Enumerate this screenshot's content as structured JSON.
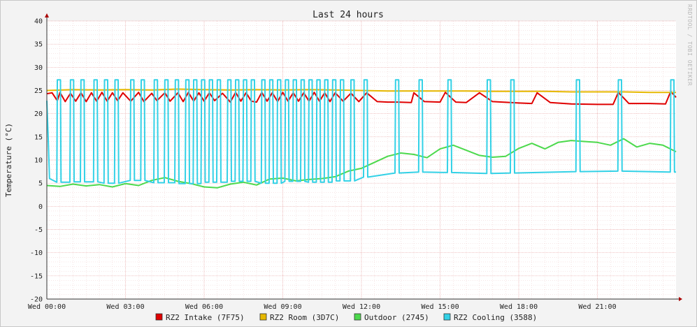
{
  "chart_data": {
    "type": "line",
    "title": "Last 24 hours",
    "ylabel": "Temperature (°C)",
    "xlabel": "",
    "watermark": "RRDTOOL / TOBI OETIKER",
    "ylim": [
      -20,
      40
    ],
    "xlim": [
      0,
      24
    ],
    "y_ticks": [
      -20,
      -15,
      -10,
      -5,
      0,
      5,
      10,
      15,
      20,
      25,
      30,
      35,
      40
    ],
    "x_ticks": [
      {
        "x": 0,
        "label": "Wed 00:00"
      },
      {
        "x": 3,
        "label": "Wed 03:00"
      },
      {
        "x": 6,
        "label": "Wed 06:00"
      },
      {
        "x": 9,
        "label": "Wed 09:00"
      },
      {
        "x": 12,
        "label": "Wed 12:00"
      },
      {
        "x": 15,
        "label": "Wed 15:00"
      },
      {
        "x": 18,
        "label": "Wed 18:00"
      },
      {
        "x": 21,
        "label": "Wed 21:00"
      }
    ],
    "grid": true,
    "legend_position": "bottom",
    "series": [
      {
        "name": "RZ2 Intake (7F75)",
        "color": "#e00000",
        "points": [
          [
            0,
            24.3
          ],
          [
            0.2,
            24.5
          ],
          [
            0.4,
            22.8
          ],
          [
            0.5,
            24.6
          ],
          [
            0.7,
            22.6
          ],
          [
            0.9,
            24.4
          ],
          [
            1.1,
            22.7
          ],
          [
            1.3,
            24.5
          ],
          [
            1.5,
            22.6
          ],
          [
            1.7,
            24.5
          ],
          [
            1.9,
            22.7
          ],
          [
            2.1,
            24.6
          ],
          [
            2.3,
            22.7
          ],
          [
            2.5,
            24.5
          ],
          [
            2.7,
            22.8
          ],
          [
            2.9,
            24.5
          ],
          [
            3.2,
            22.7
          ],
          [
            3.5,
            24.6
          ],
          [
            3.7,
            22.6
          ],
          [
            4.0,
            24.4
          ],
          [
            4.2,
            22.8
          ],
          [
            4.5,
            24.5
          ],
          [
            4.7,
            22.7
          ],
          [
            5.0,
            24.5
          ],
          [
            5.2,
            22.6
          ],
          [
            5.4,
            24.6
          ],
          [
            5.6,
            22.7
          ],
          [
            5.8,
            24.5
          ],
          [
            6.0,
            22.7
          ],
          [
            6.2,
            24.5
          ],
          [
            6.4,
            22.8
          ],
          [
            6.7,
            24.4
          ],
          [
            7.0,
            22.5
          ],
          [
            7.2,
            24.6
          ],
          [
            7.4,
            22.7
          ],
          [
            7.6,
            24.5
          ],
          [
            7.8,
            22.7
          ],
          [
            8.0,
            22.5
          ],
          [
            8.2,
            24.6
          ],
          [
            8.4,
            22.7
          ],
          [
            8.6,
            24.5
          ],
          [
            8.8,
            22.6
          ],
          [
            9.0,
            24.6
          ],
          [
            9.2,
            22.7
          ],
          [
            9.4,
            24.5
          ],
          [
            9.6,
            22.7
          ],
          [
            9.8,
            24.5
          ],
          [
            10.0,
            22.7
          ],
          [
            10.2,
            24.6
          ],
          [
            10.4,
            22.7
          ],
          [
            10.6,
            24.5
          ],
          [
            10.8,
            22.6
          ],
          [
            11.0,
            24.5
          ],
          [
            11.3,
            22.7
          ],
          [
            11.6,
            24.4
          ],
          [
            11.9,
            22.6
          ],
          [
            12.2,
            24.5
          ],
          [
            12.6,
            22.6
          ],
          [
            13.0,
            22.5
          ],
          [
            13.4,
            22.5
          ],
          [
            13.9,
            22.4
          ],
          [
            14.0,
            24.5
          ],
          [
            14.4,
            22.6
          ],
          [
            15.0,
            22.5
          ],
          [
            15.2,
            24.6
          ],
          [
            15.6,
            22.5
          ],
          [
            16.0,
            22.4
          ],
          [
            16.5,
            24.5
          ],
          [
            17.0,
            22.6
          ],
          [
            18.0,
            22.3
          ],
          [
            18.5,
            22.2
          ],
          [
            18.7,
            24.5
          ],
          [
            19.2,
            22.4
          ],
          [
            20.0,
            22.1
          ],
          [
            21.0,
            22.0
          ],
          [
            21.6,
            22.0
          ],
          [
            21.8,
            24.6
          ],
          [
            22.2,
            22.2
          ],
          [
            23.0,
            22.2
          ],
          [
            23.6,
            22.1
          ],
          [
            23.8,
            24.8
          ],
          [
            24.0,
            23.5
          ]
        ]
      },
      {
        "name": "RZ2 Room (3D7C)",
        "color": "#e6b800",
        "points": [
          [
            0,
            25.0
          ],
          [
            1,
            25.2
          ],
          [
            2,
            25.1
          ],
          [
            3,
            25.2
          ],
          [
            4,
            25.1
          ],
          [
            5,
            25.3
          ],
          [
            6,
            25.2
          ],
          [
            7,
            25.1
          ],
          [
            8,
            25.2
          ],
          [
            9,
            25.1
          ],
          [
            10,
            25.2
          ],
          [
            11,
            25.1
          ],
          [
            12,
            25.0
          ],
          [
            13,
            24.9
          ],
          [
            14,
            24.9
          ],
          [
            15,
            24.9
          ],
          [
            16,
            24.9
          ],
          [
            17,
            24.8
          ],
          [
            18,
            24.8
          ],
          [
            19,
            24.8
          ],
          [
            20,
            24.7
          ],
          [
            21,
            24.7
          ],
          [
            22,
            24.7
          ],
          [
            23,
            24.6
          ],
          [
            24,
            24.6
          ]
        ]
      },
      {
        "name": "Outdoor (2745)",
        "color": "#4cd94c",
        "points": [
          [
            0,
            4.5
          ],
          [
            0.5,
            4.3
          ],
          [
            1,
            4.8
          ],
          [
            1.5,
            4.4
          ],
          [
            2,
            4.7
          ],
          [
            2.5,
            4.2
          ],
          [
            3,
            4.9
          ],
          [
            3.5,
            4.5
          ],
          [
            4,
            5.6
          ],
          [
            4.5,
            6.2
          ],
          [
            5,
            5.4
          ],
          [
            5.5,
            4.9
          ],
          [
            6,
            4.2
          ],
          [
            6.5,
            4.0
          ],
          [
            7,
            4.8
          ],
          [
            7.5,
            5.2
          ],
          [
            8,
            4.6
          ],
          [
            8.5,
            5.9
          ],
          [
            9,
            6.1
          ],
          [
            9.5,
            5.5
          ],
          [
            10,
            5.8
          ],
          [
            10.5,
            6.0
          ],
          [
            11,
            6.4
          ],
          [
            11.5,
            7.6
          ],
          [
            12,
            8.2
          ],
          [
            12.5,
            9.5
          ],
          [
            13,
            10.8
          ],
          [
            13.5,
            11.5
          ],
          [
            14,
            11.2
          ],
          [
            14.5,
            10.5
          ],
          [
            15,
            12.4
          ],
          [
            15.5,
            13.2
          ],
          [
            16,
            12.1
          ],
          [
            16.5,
            11.0
          ],
          [
            17,
            10.6
          ],
          [
            17.5,
            10.8
          ],
          [
            18,
            12.5
          ],
          [
            18.5,
            13.6
          ],
          [
            19,
            12.4
          ],
          [
            19.5,
            13.8
          ],
          [
            20,
            14.2
          ],
          [
            20.5,
            14.0
          ],
          [
            21,
            13.8
          ],
          [
            21.5,
            13.2
          ],
          [
            22,
            14.6
          ],
          [
            22.5,
            12.8
          ],
          [
            23,
            13.6
          ],
          [
            23.5,
            13.2
          ],
          [
            24,
            11.8
          ]
        ]
      },
      {
        "name": "RZ2 Cooling (3588)",
        "color": "#33d1e6",
        "pulses": [
          0.4,
          0.9,
          1.3,
          1.8,
          2.2,
          2.6,
          3.2,
          3.6,
          4.1,
          4.5,
          4.9,
          5.3,
          5.6,
          5.9,
          6.2,
          6.5,
          6.9,
          7.2,
          7.5,
          7.8,
          8.2,
          8.5,
          8.8,
          9.1,
          9.4,
          9.7,
          10.0,
          10.3,
          10.6,
          10.9,
          11.2,
          11.6,
          12.1,
          13.3,
          14.2,
          15.3,
          16.8,
          17.7,
          20.2,
          21.8,
          23.8
        ],
        "low_by_hour": [
          5.2,
          5.3,
          5.0,
          5.6,
          5.1,
          4.9,
          5.2,
          5.4,
          5.0,
          5.4,
          5.2,
          5.5,
          6.3,
          7.2,
          7.4,
          7.3,
          7.1,
          7.2,
          7.4,
          7.9,
          7.5,
          7.6,
          7.8,
          7.4,
          6.5
        ],
        "high": 27.3,
        "start": [
          [
            0,
            22.8
          ],
          [
            0.05,
            15.0
          ],
          [
            0.1,
            6.0
          ]
        ]
      }
    ]
  }
}
